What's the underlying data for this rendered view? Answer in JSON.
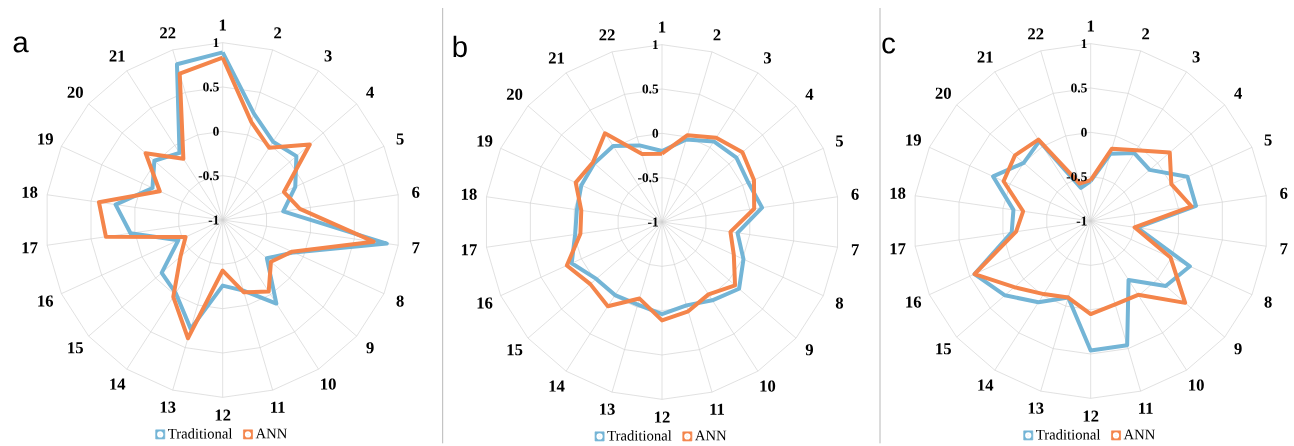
{
  "chart_data": [
    {
      "type": "radar",
      "title": "a",
      "categories": [
        "1",
        "2",
        "3",
        "4",
        "5",
        "6",
        "7",
        "8",
        "9",
        "10",
        "11",
        "12",
        "13",
        "14",
        "15",
        "16",
        "17",
        "18",
        "19",
        "20",
        "21",
        "22"
      ],
      "ylim": [
        -1,
        1
      ],
      "yticks": [
        -1,
        -0.5,
        0,
        0.5,
        1
      ],
      "grid": true,
      "legend": "bottom",
      "series": [
        {
          "name": "Traditional",
          "color": "#74b5d6",
          "values": [
            0.89,
            0.25,
            0.05,
            0.1,
            -0.1,
            -0.31,
            0.87,
            -0.12,
            -0.34,
            0.12,
            -0.17,
            -0.26,
            0.28,
            -0.02,
            -0.09,
            -0.45,
            0.05,
            0.22,
            -0.13,
            0.02,
            -0.1,
            0.83
          ]
        },
        {
          "name": "ANN",
          "color": "#f4854b",
          "values": [
            0.83,
            0.15,
            -0.03,
            0.3,
            -0.24,
            -0.12,
            0.72,
            -0.14,
            -0.28,
            -0.04,
            -0.15,
            -0.43,
            0.39,
            0.03,
            -0.37,
            -0.54,
            0.33,
            0.41,
            -0.22,
            0.15,
            -0.18,
            0.72
          ]
        }
      ]
    },
    {
      "type": "radar",
      "title": "b",
      "categories": [
        "1",
        "2",
        "3",
        "4",
        "5",
        "6",
        "7",
        "8",
        "9",
        "10",
        "11",
        "12",
        "13",
        "14",
        "15",
        "16",
        "17",
        "18",
        "19",
        "20",
        "21",
        "22"
      ],
      "ylim": [
        -1,
        1
      ],
      "yticks": [
        -1,
        -0.5,
        0,
        0.5,
        1
      ],
      "grid": true,
      "legend": "bottom",
      "series": [
        {
          "name": "Traditional",
          "color": "#74b5d6",
          "values": [
            -0.2,
            -0.03,
            0.08,
            0.11,
            0.07,
            0.14,
            -0.14,
            0.01,
            0.15,
            0.05,
            -0.02,
            0.04,
            -0.03,
            -0.02,
            -0.02,
            0.12,
            -0.01,
            -0.03,
            0.0,
            0.01,
            0.02,
            -0.1
          ]
        },
        {
          "name": "ANN",
          "color": "#f4854b",
          "values": [
            -0.23,
            0.02,
            0.13,
            0.2,
            0.14,
            0.05,
            -0.22,
            -0.11,
            0.09,
            -0.03,
            0.05,
            0.11,
            -0.1,
            0.13,
            0.07,
            0.18,
            -0.07,
            -0.08,
            0.07,
            0.03,
            0.19,
            -0.2
          ]
        }
      ]
    },
    {
      "type": "radar",
      "title": "c",
      "categories": [
        "1",
        "2",
        "3",
        "4",
        "5",
        "6",
        "7",
        "8",
        "9",
        "10",
        "11",
        "12",
        "13",
        "14",
        "15",
        "16",
        "17",
        "18",
        "19",
        "20",
        "21",
        "22"
      ],
      "ylim": [
        -1,
        1
      ],
      "yticks": [
        -1,
        -0.5,
        0,
        0.5,
        1
      ],
      "grid": true,
      "legend": "bottom",
      "series": [
        {
          "name": "Traditional",
          "color": "#74b5d6",
          "values": [
            -0.55,
            -0.21,
            -0.09,
            -0.12,
            0.2,
            0.2,
            -0.47,
            0.23,
            0.12,
            -0.21,
            0.46,
            0.46,
            -0.1,
            0.09,
            0.28,
            0.44,
            -0.1,
            -0.12,
            0.21,
            0.0,
            0.07,
            -0.61
          ]
        },
        {
          "name": "ANN",
          "color": "#f4854b",
          "values": [
            -0.54,
            -0.15,
            -0.05,
            0.18,
            0.0,
            0.15,
            -0.5,
            -0.01,
            0.41,
            -0.01,
            -0.02,
            0.05,
            -0.1,
            -0.02,
            0.14,
            0.44,
            -0.15,
            -0.23,
            0.08,
            0.13,
            0.09,
            -0.56
          ]
        }
      ]
    }
  ]
}
